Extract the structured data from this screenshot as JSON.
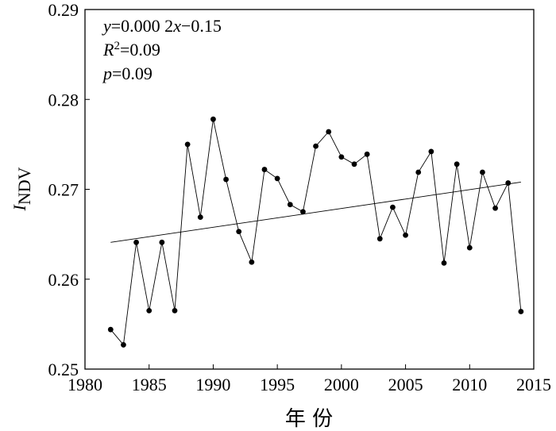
{
  "chart_data": {
    "type": "line",
    "xlabel": "年 份",
    "ylabel": {
      "main": "I",
      "sub": "NDV"
    },
    "xlim": [
      1980,
      2015
    ],
    "ylim": [
      0.25,
      0.29
    ],
    "x_ticks": [
      "1980",
      "1985",
      "1990",
      "1995",
      "2000",
      "2005",
      "2010",
      "2015"
    ],
    "y_ticks": [
      "0.25",
      "0.26",
      "0.27",
      "0.28",
      "0.29"
    ],
    "annotation": {
      "line1": {
        "a": "y",
        "b": "=0.000 2",
        "c": "x",
        "d": "−0.15"
      },
      "line2": {
        "a": "R",
        "sup": "2",
        "b": "=0.09"
      },
      "line3": {
        "a": "p",
        "b": "=0.09"
      }
    },
    "trend": {
      "x": [
        1982,
        2014
      ],
      "y": [
        0.2641,
        0.2708
      ]
    },
    "x": [
      1982,
      1983,
      1984,
      1985,
      1986,
      1987,
      1988,
      1989,
      1990,
      1991,
      1992,
      1993,
      1994,
      1995,
      1996,
      1997,
      1998,
      1999,
      2000,
      2001,
      2002,
      2003,
      2004,
      2005,
      2006,
      2007,
      2008,
      2009,
      2010,
      2011,
      2012,
      2013,
      2014
    ],
    "values": [
      0.2544,
      0.2527,
      0.2641,
      0.2565,
      0.2641,
      0.2565,
      0.275,
      0.2669,
      0.2778,
      0.2711,
      0.2653,
      0.2619,
      0.2722,
      0.2712,
      0.2683,
      0.2675,
      0.2748,
      0.2764,
      0.2736,
      0.2728,
      0.2739,
      0.2645,
      0.268,
      0.2649,
      0.2719,
      0.2742,
      0.2618,
      0.2728,
      0.2635,
      0.2719,
      0.2679,
      0.2707,
      0.2564
    ]
  }
}
